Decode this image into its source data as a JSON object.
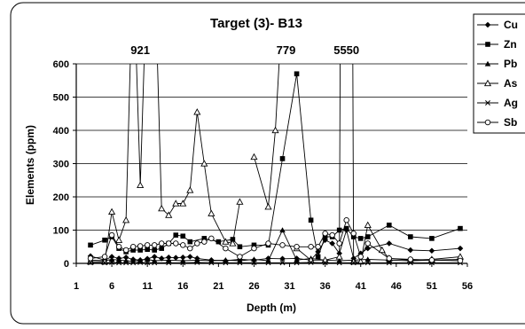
{
  "chart_data": {
    "type": "line",
    "title": "Target (3)- B13",
    "xlabel": "Depth (m)",
    "ylabel": "Elements (ppm)",
    "xlim": [
      1,
      56
    ],
    "ylim": [
      0,
      600
    ],
    "x_ticks": [
      1,
      6,
      11,
      16,
      21,
      26,
      31,
      36,
      41,
      46,
      51,
      56
    ],
    "y_ticks": [
      0,
      100,
      200,
      300,
      400,
      500,
      600
    ],
    "grid": "horizontal",
    "legend_position": "right",
    "annotations": [
      {
        "text": "921",
        "x": 10.0
      },
      {
        "text": "779",
        "x": 30.5
      },
      {
        "text": "5550",
        "x": 39.0
      }
    ],
    "series": [
      {
        "name": "Cu",
        "marker": "diamond-filled",
        "x": [
          3,
          5,
          6,
          7,
          8,
          9,
          10,
          11,
          12,
          13,
          14,
          15,
          16,
          17,
          18,
          20,
          22,
          24,
          26,
          28,
          30,
          32,
          34,
          35,
          36,
          37,
          38,
          39,
          40,
          41,
          42,
          45,
          48,
          51,
          55
        ],
        "y": [
          22,
          10,
          20,
          15,
          18,
          12,
          10,
          14,
          20,
          15,
          18,
          17,
          18,
          20,
          15,
          10,
          8,
          12,
          10,
          15,
          14,
          15,
          10,
          35,
          70,
          60,
          30,
          100,
          15,
          30,
          45,
          60,
          40,
          38,
          45
        ]
      },
      {
        "name": "Zn",
        "marker": "square-filled",
        "x": [
          3,
          5,
          6,
          7,
          8,
          9,
          10,
          11,
          12,
          13,
          14,
          15,
          16,
          17,
          19,
          21,
          23,
          24,
          26,
          28,
          30,
          32,
          34,
          35,
          36,
          37,
          38,
          39,
          40,
          41,
          42,
          45,
          48,
          51,
          55
        ],
        "y": [
          55,
          70,
          80,
          45,
          35,
          40,
          40,
          42,
          40,
          45,
          60,
          85,
          82,
          65,
          75,
          65,
          72,
          50,
          55,
          55,
          315,
          570,
          130,
          20,
          80,
          80,
          100,
          105,
          80,
          75,
          80,
          115,
          80,
          75,
          105
        ]
      },
      {
        "name": "Pb",
        "marker": "triangle-filled",
        "x": [
          3,
          5,
          6,
          7,
          8,
          9,
          10,
          11,
          12,
          14,
          16,
          18,
          20,
          22,
          24,
          26,
          28,
          30,
          32,
          34,
          36,
          38,
          40,
          42,
          45,
          48,
          51,
          55
        ],
        "y": [
          10,
          8,
          12,
          10,
          8,
          6,
          10,
          12,
          8,
          10,
          8,
          10,
          8,
          10,
          8,
          12,
          8,
          100,
          10,
          15,
          10,
          8,
          10,
          12,
          10,
          8,
          10,
          12
        ]
      },
      {
        "name": "As",
        "marker": "triangle-open",
        "segments": [
          {
            "x": [
              3,
              5,
              6,
              7,
              8,
              9,
              10,
              11,
              12,
              13,
              14,
              15,
              16,
              17,
              18,
              19,
              20,
              22,
              23,
              24
            ],
            "y": [
              5,
              5,
              155,
              70,
              130,
              920,
              235,
              920,
              920,
              165,
              145,
              180,
              180,
              220,
              455,
              300,
              150,
              65,
              60,
              185
            ]
          },
          {
            "x": [
              26,
              28,
              29,
              30,
              31
            ],
            "y": [
              320,
              170,
              400,
              780,
              780
            ]
          },
          {
            "x": [
              32,
              34,
              36,
              38,
              39,
              40,
              41,
              42,
              44,
              45,
              48,
              51,
              55
            ],
            "y": [
              45,
              10,
              10,
              20,
              5550,
              5,
              5,
              115,
              40,
              15,
              10,
              12,
              20
            ]
          }
        ]
      },
      {
        "name": "Ag",
        "marker": "x",
        "x": [
          3,
          5,
          6,
          7,
          8,
          9,
          10,
          11,
          12,
          14,
          16,
          18,
          20,
          22,
          24,
          26,
          28,
          30,
          32,
          34,
          36,
          38,
          40,
          42,
          45,
          48,
          51,
          55
        ],
        "y": [
          2,
          2,
          3,
          2,
          2,
          2,
          3,
          2,
          2,
          2,
          2,
          3,
          2,
          2,
          2,
          2,
          2,
          2,
          2,
          3,
          2,
          2,
          2,
          2,
          2,
          2,
          2,
          2
        ]
      },
      {
        "name": "Sb",
        "marker": "circle-open",
        "x": [
          3,
          5,
          6,
          7,
          8,
          9,
          10,
          11,
          12,
          13,
          14,
          15,
          16,
          17,
          18,
          19,
          20,
          22,
          24,
          26,
          28,
          30,
          32,
          34,
          35,
          36,
          37,
          38,
          39,
          40,
          41,
          42,
          45,
          48,
          51,
          55
        ],
        "y": [
          15,
          20,
          85,
          50,
          40,
          50,
          52,
          55,
          55,
          60,
          60,
          60,
          55,
          45,
          60,
          65,
          75,
          45,
          20,
          45,
          60,
          55,
          50,
          50,
          50,
          90,
          85,
          60,
          130,
          90,
          20,
          60,
          15,
          12,
          10,
          8
        ]
      }
    ]
  }
}
